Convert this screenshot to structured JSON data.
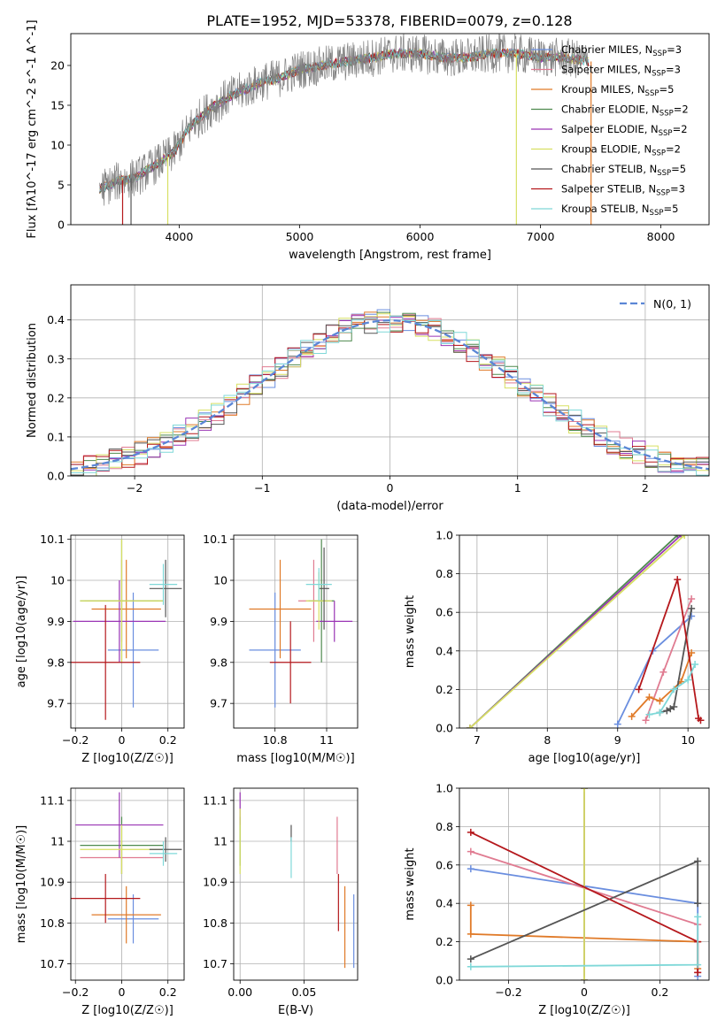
{
  "figure_title": "PLATE=1952, MJD=53378, FIBERID=0079, z=0.128",
  "colors": {
    "Chabrier MILES": "#6a8edf",
    "Salpeter MILES": "#e07b91",
    "Kroupa MILES": "#e07a28",
    "Chabrier ELODIE": "#4e8a4e",
    "Salpeter ELODIE": "#9a35b5",
    "Kroupa ELODIE": "#d7e063",
    "Chabrier STELIB": "#555555",
    "Salpeter STELIB": "#b5181c",
    "Kroupa STELIB": "#7fd8d8"
  },
  "chart_data": [
    {
      "id": "spectrum",
      "type": "line",
      "title": "",
      "xlabel": "wavelength [Angstrom, rest frame]",
      "ylabel": "Flux [fλ10^-17 erg cm^-2 s^-1 A^-1]",
      "xlim": [
        3100,
        8400
      ],
      "ylim": [
        0,
        24
      ],
      "xticks": [
        4000,
        5000,
        6000,
        7000,
        8000
      ],
      "yticks": [
        0,
        5,
        10,
        15,
        20
      ],
      "grid": false,
      "legend_position": "top-right",
      "legend": [
        {
          "label": "Chabrier MILES, N_SSP=3",
          "base": "Chabrier MILES, N",
          "sub": "SSP",
          "tail": "=3",
          "model": "Chabrier MILES"
        },
        {
          "label": "Salpeter MILES, N_SSP=3",
          "base": "Salpeter MILES, N",
          "sub": "SSP",
          "tail": "=3",
          "model": "Salpeter MILES"
        },
        {
          "label": "Kroupa MILES, N_SSP=5",
          "base": "Kroupa MILES, N",
          "sub": "SSP",
          "tail": "=5",
          "model": "Kroupa MILES"
        },
        {
          "label": "Chabrier ELODIE, N_SSP=2",
          "base": "Chabrier ELODIE, N",
          "sub": "SSP",
          "tail": "=2",
          "model": "Chabrier ELODIE"
        },
        {
          "label": "Salpeter ELODIE, N_SSP=2",
          "base": "Salpeter ELODIE, N",
          "sub": "SSP",
          "tail": "=2",
          "model": "Salpeter ELODIE"
        },
        {
          "label": "Kroupa ELODIE, N_SSP=2",
          "base": "Kroupa ELODIE, N",
          "sub": "SSP",
          "tail": "=2",
          "model": "Kroupa ELODIE"
        },
        {
          "label": "Chabrier STELIB, N_SSP=5",
          "base": "Chabrier STELIB, N",
          "sub": "SSP",
          "tail": "=5",
          "model": "Chabrier STELIB"
        },
        {
          "label": "Salpeter STELIB, N_SSP=3",
          "base": "Salpeter STELIB, N",
          "sub": "SSP",
          "tail": "=3",
          "model": "Salpeter STELIB"
        },
        {
          "label": "Kroupa STELIB, N_SSP=5",
          "base": "Kroupa STELIB, N",
          "sub": "SSP",
          "tail": "=5",
          "model": "Kroupa STELIB"
        }
      ],
      "data_trend": {
        "x": [
          3340,
          3500,
          3650,
          3800,
          3950,
          4100,
          4250,
          4400,
          4550,
          4700,
          4850,
          5000,
          5200,
          5400,
          5600,
          5800,
          6000,
          6200,
          6400,
          6600,
          6800,
          7000,
          7200,
          7400
        ],
        "y": [
          4.5,
          5.5,
          6.0,
          7.5,
          9.0,
          12.5,
          14.5,
          16.0,
          17.0,
          18.0,
          18.5,
          19.5,
          20.0,
          20.5,
          21.0,
          21.5,
          21.5,
          21.0,
          21.0,
          21.5,
          21.5,
          21.0,
          21.0,
          20.5
        ]
      },
      "truncations": [
        {
          "model": "Salpeter STELIB",
          "x_end": 3530
        },
        {
          "model": "Chabrier STELIB",
          "x_end": 3600
        },
        {
          "model": "Kroupa ELODIE",
          "x_end": 3905
        },
        {
          "model": "Kroupa ELODIE",
          "x_end": 6800
        },
        {
          "model": "Kroupa MILES",
          "x_end": 7420
        }
      ]
    },
    {
      "id": "residuals",
      "type": "line",
      "xlabel": "(data-model)/error",
      "ylabel": "Normed distribution",
      "xlim": [
        -2.5,
        2.5
      ],
      "ylim": [
        0,
        0.49
      ],
      "xticks": [
        -2,
        -1,
        0,
        1,
        2
      ],
      "yticks": [
        0.0,
        0.1,
        0.2,
        0.3,
        0.4
      ],
      "grid": true,
      "legend_position": "top-right",
      "legend": [
        {
          "label": "N(0, 1)",
          "base": "N",
          "tail": "(0, 1)",
          "style": "dashed"
        }
      ],
      "bin_edges_start": -2.5,
      "bin_width": 0.1,
      "n_bins": 50
    },
    {
      "id": "age-vs-Z",
      "type": "scatter",
      "xlabel": "Z [log10(Z/Z☉)]",
      "ylabel": "age [log10(age/yr)]",
      "xlim": [
        -0.22,
        0.27
      ],
      "ylim": [
        9.64,
        10.11
      ],
      "xticks": [
        -0.2,
        0.0,
        0.2
      ],
      "yticks": [
        9.7,
        9.8,
        9.9,
        10.0,
        10.1
      ],
      "grid": true,
      "points": [
        {
          "model": "Chabrier MILES",
          "x": 0.05,
          "y": 9.83,
          "xerr": 0.11,
          "yerr": 0.14
        },
        {
          "model": "Salpeter MILES",
          "x": 0.0,
          "y": 9.95,
          "xerr": 0.16,
          "yerr": 0.1
        },
        {
          "model": "Kroupa MILES",
          "x": 0.02,
          "y": 9.93,
          "xerr": 0.15,
          "yerr": 0.12
        },
        {
          "model": "Chabrier ELODIE",
          "x": 0.0,
          "y": 9.95,
          "xerr": 0.18,
          "yerr": 0.15
        },
        {
          "model": "Salpeter ELODIE",
          "x": -0.01,
          "y": 9.9,
          "xerr": 0.2,
          "yerr": 0.1
        },
        {
          "model": "Kroupa ELODIE",
          "x": 0.0,
          "y": 9.95,
          "xerr": 0.18,
          "yerr": 0.15
        },
        {
          "model": "Chabrier STELIB",
          "x": 0.19,
          "y": 9.98,
          "xerr": 0.07,
          "yerr": 0.07
        },
        {
          "model": "Salpeter STELIB",
          "x": -0.07,
          "y": 9.8,
          "xerr": 0.15,
          "yerr": 0.14
        },
        {
          "model": "Kroupa STELIB",
          "x": 0.18,
          "y": 9.99,
          "xerr": 0.06,
          "yerr": 0.05
        }
      ]
    },
    {
      "id": "age-vs-mass",
      "type": "scatter",
      "xlabel": "mass [log10(M/M☉)]",
      "ylabel": "",
      "xlim": [
        10.64,
        11.12
      ],
      "ylim": [
        9.64,
        10.11
      ],
      "xticks": [
        10.8,
        11.0
      ],
      "yticks": [
        9.7,
        9.8,
        9.9,
        10.0,
        10.1
      ],
      "grid": true,
      "points": [
        {
          "model": "Chabrier MILES",
          "x": 10.8,
          "y": 9.83,
          "xerr": 0.1,
          "yerr": 0.14
        },
        {
          "model": "Salpeter MILES",
          "x": 10.95,
          "y": 9.95,
          "xerr": 0.06,
          "yerr": 0.1
        },
        {
          "model": "Kroupa MILES",
          "x": 10.82,
          "y": 9.93,
          "xerr": 0.12,
          "yerr": 0.12
        },
        {
          "model": "Chabrier ELODIE",
          "x": 10.98,
          "y": 9.95,
          "xerr": 0.05,
          "yerr": 0.15
        },
        {
          "model": "Salpeter ELODIE",
          "x": 11.03,
          "y": 9.9,
          "xerr": 0.07,
          "yerr": 0.05
        },
        {
          "model": "Kroupa ELODIE",
          "x": 10.97,
          "y": 9.95,
          "xerr": 0.05,
          "yerr": 0.07
        },
        {
          "model": "Chabrier STELIB",
          "x": 10.99,
          "y": 9.98,
          "xerr": 0.02,
          "yerr": 0.1
        },
        {
          "model": "Salpeter STELIB",
          "x": 10.86,
          "y": 9.8,
          "xerr": 0.08,
          "yerr": 0.1
        },
        {
          "model": "Kroupa STELIB",
          "x": 10.97,
          "y": 9.99,
          "xerr": 0.05,
          "yerr": 0.04
        }
      ]
    },
    {
      "id": "weight-vs-age",
      "type": "line",
      "xlabel": "age [log10(age/yr)]",
      "ylabel": "mass weight",
      "xlim": [
        6.75,
        10.3
      ],
      "ylim": [
        0.0,
        1.0
      ],
      "xticks": [
        7,
        8,
        9,
        10
      ],
      "yticks": [
        0.0,
        0.2,
        0.4,
        0.6,
        0.8,
        1.0
      ],
      "grid": true,
      "series": [
        {
          "model": "Chabrier MILES",
          "x": [
            9.0,
            9.5,
            10.05
          ],
          "y": [
            0.02,
            0.4,
            0.58
          ]
        },
        {
          "model": "Salpeter MILES",
          "x": [
            9.4,
            9.65,
            10.05
          ],
          "y": [
            0.04,
            0.29,
            0.67
          ]
        },
        {
          "model": "Kroupa MILES",
          "x": [
            9.2,
            9.45,
            9.6,
            9.9,
            10.05
          ],
          "y": [
            0.06,
            0.16,
            0.14,
            0.24,
            0.39
          ]
        },
        {
          "model": "Chabrier ELODIE",
          "x": [
            6.9,
            9.85
          ],
          "y": [
            0.0,
            1.0
          ]
        },
        {
          "model": "Salpeter ELODIE",
          "x": [
            6.9,
            9.9
          ],
          "y": [
            0.0,
            1.0
          ]
        },
        {
          "model": "Kroupa ELODIE",
          "x": [
            6.9,
            9.95
          ],
          "y": [
            0.0,
            1.0
          ]
        },
        {
          "model": "Chabrier STELIB",
          "x": [
            9.6,
            9.7,
            9.75,
            9.8,
            10.05
          ],
          "y": [
            0.08,
            0.09,
            0.1,
            0.11,
            0.62
          ]
        },
        {
          "model": "Salpeter STELIB",
          "x": [
            9.3,
            9.85,
            10.15,
            10.18
          ],
          "y": [
            0.2,
            0.77,
            0.05,
            0.04
          ]
        },
        {
          "model": "Kroupa STELIB",
          "x": [
            9.45,
            9.6,
            9.8,
            10.0,
            10.1
          ],
          "y": [
            0.07,
            0.08,
            0.2,
            0.25,
            0.33
          ]
        }
      ]
    },
    {
      "id": "mass-vs-Z",
      "type": "scatter",
      "xlabel": "Z [log10(Z/Z☉)]",
      "ylabel": "mass [log10(M/M☉)]",
      "xlim": [
        -0.22,
        0.27
      ],
      "ylim": [
        10.66,
        11.13
      ],
      "xticks": [
        -0.2,
        0.0,
        0.2
      ],
      "yticks": [
        10.7,
        10.8,
        10.9,
        11.0,
        11.1
      ],
      "grid": true,
      "points": [
        {
          "model": "Chabrier MILES",
          "x": 0.05,
          "y": 10.81,
          "xerr": 0.11,
          "yerr": 0.06
        },
        {
          "model": "Salpeter MILES",
          "x": 0.0,
          "y": 10.96,
          "xerr": 0.18,
          "yerr": 0.04
        },
        {
          "model": "Kroupa MILES",
          "x": 0.02,
          "y": 10.82,
          "xerr": 0.15,
          "yerr": 0.07
        },
        {
          "model": "Chabrier ELODIE",
          "x": 0.0,
          "y": 10.99,
          "xerr": 0.18,
          "yerr": 0.07
        },
        {
          "model": "Salpeter ELODIE",
          "x": -0.01,
          "y": 11.04,
          "xerr": 0.19,
          "yerr": 0.08
        },
        {
          "model": "Kroupa ELODIE",
          "x": 0.0,
          "y": 10.98,
          "xerr": 0.18,
          "yerr": 0.06
        },
        {
          "model": "Chabrier STELIB",
          "x": 0.19,
          "y": 10.98,
          "xerr": 0.07,
          "yerr": 0.03
        },
        {
          "model": "Salpeter STELIB",
          "x": -0.07,
          "y": 10.86,
          "xerr": 0.15,
          "yerr": 0.06
        },
        {
          "model": "Kroupa STELIB",
          "x": 0.18,
          "y": 10.97,
          "xerr": 0.06,
          "yerr": 0.03
        }
      ]
    },
    {
      "id": "mass-vs-EBV",
      "type": "scatter",
      "xlabel": "E(B-V)",
      "ylabel": "",
      "xlim": [
        -0.005,
        0.092
      ],
      "ylim": [
        10.66,
        11.13
      ],
      "xticks": [
        0.0,
        0.05
      ],
      "xticklabels": [
        "0.00",
        "0.05"
      ],
      "yticks": [
        10.7,
        10.8,
        10.9,
        11.0,
        11.1
      ],
      "grid": true,
      "points": [
        {
          "model": "Chabrier MILES",
          "x": 0.089,
          "y": 10.78,
          "xerr": 0,
          "yerr": 0.09
        },
        {
          "model": "Salpeter MILES",
          "x": 0.076,
          "y": 10.99,
          "xerr": 0,
          "yerr": 0.07
        },
        {
          "model": "Kroupa MILES",
          "x": 0.082,
          "y": 10.79,
          "xerr": 0,
          "yerr": 0.1
        },
        {
          "model": "Chabrier ELODIE",
          "x": 0.0,
          "y": 11.0,
          "xerr": 0,
          "yerr": 0.06
        },
        {
          "model": "Salpeter ELODIE",
          "x": 0.0,
          "y": 11.08,
          "xerr": 0,
          "yerr": 0.04
        },
        {
          "model": "Kroupa ELODIE",
          "x": 0.0,
          "y": 11.0,
          "xerr": 0,
          "yerr": 0.08
        },
        {
          "model": "Chabrier STELIB",
          "x": 0.04,
          "y": 11.02,
          "xerr": 0,
          "yerr": 0.02
        },
        {
          "model": "Salpeter STELIB",
          "x": 0.077,
          "y": 10.85,
          "xerr": 0,
          "yerr": 0.07
        },
        {
          "model": "Kroupa STELIB",
          "x": 0.04,
          "y": 10.96,
          "xerr": 0,
          "yerr": 0.05
        }
      ]
    },
    {
      "id": "weight-vs-Z",
      "type": "line",
      "xlabel": "Z [log10(Z/Z☉)]",
      "ylabel": "mass weight",
      "xlim": [
        -0.33,
        0.33
      ],
      "ylim": [
        0.0,
        1.0
      ],
      "xticks": [
        -0.2,
        0.0,
        0.2
      ],
      "yticks": [
        0.0,
        0.2,
        0.4,
        0.6,
        0.8,
        1.0
      ],
      "grid": true,
      "series": [
        {
          "model": "Chabrier MILES",
          "x": [
            -0.3,
            0.3,
            0.3
          ],
          "y": [
            0.58,
            0.4,
            0.02
          ]
        },
        {
          "model": "Salpeter MILES",
          "x": [
            -0.3,
            0.3,
            0.3
          ],
          "y": [
            0.67,
            0.29,
            0.04
          ]
        },
        {
          "model": "Kroupa MILES",
          "x": [
            -0.3,
            -0.3,
            0.3,
            0.3
          ],
          "y": [
            0.39,
            0.24,
            0.2,
            0.06
          ]
        },
        {
          "model": "Chabrier ELODIE",
          "x": [
            0.0,
            0.0
          ],
          "y": [
            0.0,
            1.0
          ]
        },
        {
          "model": "Salpeter ELODIE",
          "x": [
            0.0,
            0.0
          ],
          "y": [
            0.0,
            1.0
          ]
        },
        {
          "model": "Kroupa ELODIE",
          "x": [
            0.0,
            0.0
          ],
          "y": [
            0.0,
            1.0
          ]
        },
        {
          "model": "Chabrier STELIB",
          "x": [
            -0.3,
            0.3,
            0.3
          ],
          "y": [
            0.11,
            0.62,
            0.4
          ]
        },
        {
          "model": "Salpeter STELIB",
          "x": [
            -0.3,
            0.3,
            0.3
          ],
          "y": [
            0.77,
            0.2,
            0.04
          ]
        },
        {
          "model": "Kroupa STELIB",
          "x": [
            -0.3,
            0.3,
            0.3
          ],
          "y": [
            0.07,
            0.08,
            0.33
          ]
        }
      ]
    }
  ]
}
